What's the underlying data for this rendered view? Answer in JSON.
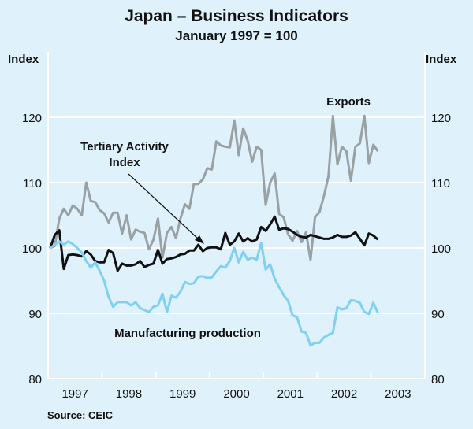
{
  "chart_data": {
    "type": "line",
    "title": "Japan – Business Indicators",
    "subtitle": "January 1997 = 100",
    "ylabel_left": "Index",
    "ylabel_right": "Index",
    "ylim": [
      80,
      130
    ],
    "yticks": [
      80,
      90,
      100,
      110,
      120
    ],
    "x_start": "1997-01",
    "x_frequency": "monthly",
    "xlim": [
      "1997-01",
      "2003-12"
    ],
    "xticks": [
      "1997",
      "1998",
      "1999",
      "2000",
      "2001",
      "2002",
      "2003"
    ],
    "grid": true,
    "source": "Source: CEIC",
    "series": [
      {
        "name": "Exports",
        "color": "#9aa1a5",
        "values": [
          100,
          100.3,
          104.5,
          106,
          105,
          106.5,
          106,
          105,
          110,
          107.2,
          107,
          105.8,
          105.3,
          103.9,
          105.4,
          105.4,
          102.2,
          105,
          101.3,
          102.8,
          102.5,
          102.3,
          99.8,
          101.3,
          104.5,
          98.5,
          102.3,
          103.2,
          101.5,
          104.5,
          106.7,
          106,
          109.8,
          109.8,
          110.5,
          112.2,
          112,
          116.3,
          115.7,
          115.5,
          115.4,
          119.5,
          114.2,
          118.3,
          116.4,
          113.2,
          115.5,
          115,
          106.6,
          110,
          111.4,
          105.2,
          104.7,
          102.1,
          101.1,
          102.6,
          100.9,
          102.4,
          98.2,
          104.7,
          105.5,
          108,
          111,
          120.2,
          112.8,
          115.5,
          114.8,
          110.3,
          115.5,
          116,
          120.2,
          113,
          115.8,
          114.8
        ]
      },
      {
        "name": "Tertiary Activity Index",
        "label": [
          "Tertiary Activity",
          "Index"
        ],
        "color": "#111111",
        "values": [
          100,
          102,
          102.7,
          96.8,
          98.9,
          99,
          98.9,
          98.7,
          99.5,
          99,
          98,
          97.8,
          97.8,
          99.7,
          99.2,
          96.5,
          97.6,
          97.3,
          97.3,
          97.5,
          98,
          97.1,
          97.4,
          97.6,
          99.7,
          97.6,
          98.3,
          98.4,
          98.6,
          99,
          99.1,
          99.6,
          99.6,
          100.5,
          99.5,
          100,
          100.1,
          100.1,
          99.8,
          102.3,
          100.5,
          101,
          102.2,
          101,
          101.5,
          101,
          101.3,
          103.2,
          102.6,
          103.6,
          104.8,
          102.8,
          103,
          102.9,
          102.5,
          102,
          101.7,
          101.6,
          102,
          101.8,
          101.6,
          101.4,
          101.4,
          101.6,
          102,
          101.7,
          101.7,
          101.9,
          102.4,
          101.4,
          100.4,
          102.2,
          101.9,
          101.3
        ]
      },
      {
        "name": "Manufacturing production",
        "color": "#7fd0f2",
        "values": [
          100,
          100.5,
          101,
          100.5,
          101,
          100.6,
          100,
          99.3,
          98,
          97,
          97.8,
          96.5,
          95,
          92.5,
          91,
          91.7,
          91.7,
          91.7,
          91.2,
          91.7,
          90.8,
          90.5,
          90.2,
          91,
          91.2,
          93,
          90.2,
          92.7,
          92.4,
          93.3,
          94.8,
          94.5,
          94.6,
          95.6,
          95.7,
          95.4,
          95.5,
          96.4,
          97.2,
          97,
          98,
          100,
          97.8,
          99.4,
          98.2,
          98.5,
          98.2,
          100.8,
          96.7,
          97.5,
          95.3,
          94,
          92.8,
          91.9,
          89.7,
          89.4,
          87.2,
          87,
          85.1,
          85.5,
          85.5,
          86.3,
          86.7,
          87,
          90.9,
          90.6,
          90.8,
          92,
          91.9,
          91.6,
          90.2,
          89.9,
          91.6,
          90.1
        ]
      }
    ]
  }
}
